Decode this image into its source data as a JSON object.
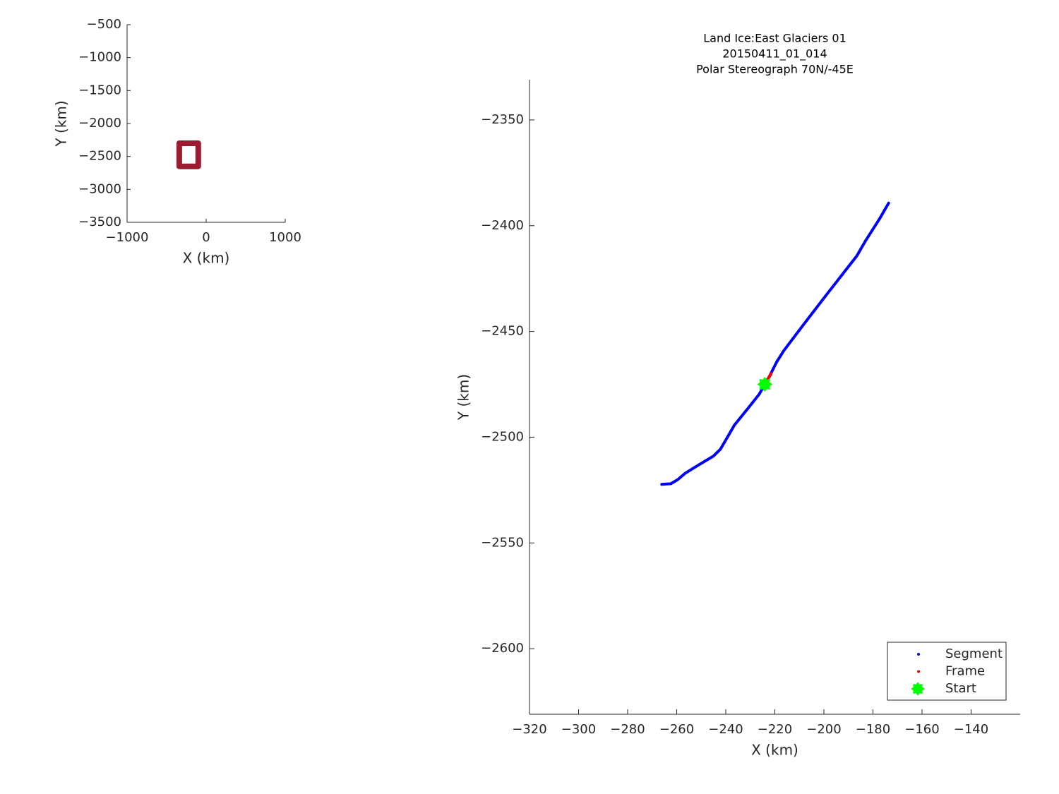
{
  "chart_data": [
    {
      "type": "line",
      "xlabel": "X (km)",
      "ylabel": "Y (km)",
      "xlim": [
        -1000,
        1000
      ],
      "ylim": [
        -3500,
        -500
      ],
      "xticks": [
        {
          "value": -1000,
          "label": "−1000"
        },
        0,
        1000
      ],
      "yticks": [
        {
          "value": -500,
          "label": "−500"
        },
        {
          "value": -1000,
          "label": "−1000"
        },
        {
          "value": -1500,
          "label": "−1500"
        },
        {
          "value": -2000,
          "label": "−2000"
        },
        {
          "value": -2500,
          "label": "−2500"
        },
        {
          "value": -3000,
          "label": "−3000"
        },
        {
          "value": -3500,
          "label": "−3500"
        }
      ],
      "series": [
        {
          "color": "#9b1b30",
          "x": [
            -340,
            -100,
            -100,
            -340,
            -340
          ],
          "values": [
            -2300,
            -2300,
            -2650,
            -2650,
            -2300
          ]
        }
      ]
    },
    {
      "type": "line",
      "title": [
        "Land Ice:East Glaciers 01",
        "20150411_01_014",
        "Polar Stereograph 70N/-45E"
      ],
      "xlabel": "X (km)",
      "ylabel": "Y (km)",
      "xlim": [
        -320,
        -120
      ],
      "ylim": [
        -2631,
        -2331
      ],
      "xticks": [
        {
          "value": -320,
          "label": "−320"
        },
        {
          "value": -300,
          "label": "−300"
        },
        {
          "value": -280,
          "label": "−280"
        },
        {
          "value": -260,
          "label": "−260"
        },
        {
          "value": -240,
          "label": "−240"
        },
        {
          "value": -220,
          "label": "−220"
        },
        {
          "value": -200,
          "label": "−200"
        },
        {
          "value": -180,
          "label": "−180"
        },
        {
          "value": -160,
          "label": "−160"
        },
        {
          "value": -140,
          "label": "−140"
        }
      ],
      "yticks": [
        {
          "value": -2350,
          "label": "−2350"
        },
        {
          "value": -2400,
          "label": "−2400"
        },
        {
          "value": -2450,
          "label": "−2450"
        },
        {
          "value": -2500,
          "label": "−2500"
        },
        {
          "value": -2550,
          "label": "−2550"
        },
        {
          "value": -2600,
          "label": "−2600"
        }
      ],
      "legend": "lower right",
      "series": [
        {
          "name": "Segment",
          "color": "#0000ff",
          "x": [
            -266.1,
            -262.4,
            -259.5,
            -256.5,
            -250.9,
            -245.1,
            -242.2,
            -239.3,
            -236.5,
            -230.7,
            -226.4,
            -224.1,
            -222.1,
            -219.2,
            -216.3,
            -207.6,
            -199.0,
            -186.6,
            -183.1,
            -177.3,
            -173.6
          ],
          "values": [
            -2522.3,
            -2522,
            -2520,
            -2517,
            -2513,
            -2509,
            -2505.7,
            -2500,
            -2494.3,
            -2486,
            -2479.7,
            -2475,
            -2471,
            -2464.3,
            -2459,
            -2445.7,
            -2432.7,
            -2414.3,
            -2407.3,
            -2396.7,
            -2389.3
          ]
        },
        {
          "name": "Frame",
          "color": "#ff0000",
          "x": [
            -224.1,
            -221.5
          ],
          "values": [
            -2475,
            -2470
          ]
        },
        {
          "name": "Start",
          "color": "#00ff00",
          "x": [
            -224.1
          ],
          "values": [
            -2475
          ]
        }
      ]
    }
  ]
}
